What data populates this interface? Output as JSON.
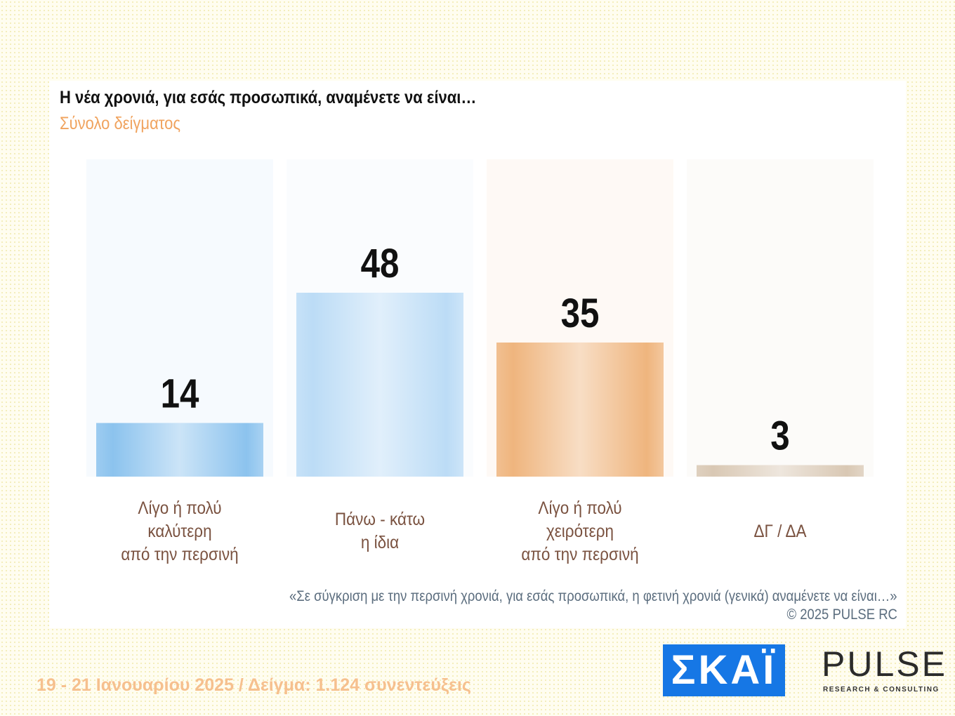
{
  "chart_data": {
    "type": "bar",
    "title": "Η νέα χρονιά, για εσάς προσωπικά, αναμένετε να είναι…",
    "subtitle": "Σύνολο δείγματος",
    "categories": [
      "Λίγο ή πολύ\nκαλύτερη\nαπό την περσινή",
      "Πάνω - κάτω\nη ίδια",
      "Λίγο ή πολύ\nχειρότερη\nαπό την περσινή",
      "ΔΓ / ΔΑ"
    ],
    "values": [
      14,
      48,
      35,
      3
    ],
    "colors": [
      "#8cc3ee",
      "#bcdcf6",
      "#efb57e",
      "#d9c8b4"
    ],
    "note": "«Σε σύγκριση με την περσινή χρονιά, για εσάς προσωπικά, η φετινή χρονιά (γενικά) αναμένετε να είναι…»",
    "copyright": "©  2025  PULSE RC",
    "footer": "19 - 21 Ιανουαρίου 2025  /  Δείγμα:  1.124 συνεντεύξεις",
    "logo_skai": "ΣΚΑΪ",
    "logo_pulse": "PULSE",
    "logo_pulse_sub": "RESEARCH & CONSULTING"
  }
}
